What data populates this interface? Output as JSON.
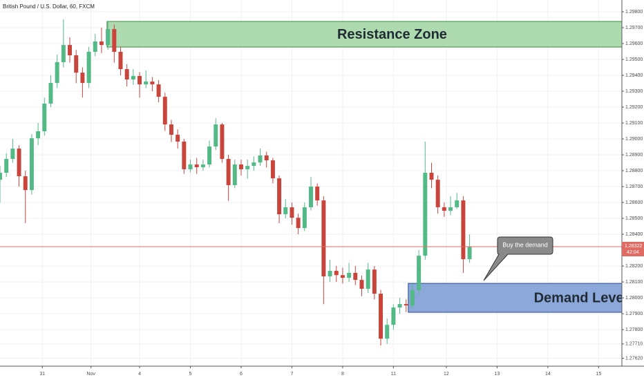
{
  "chart_data": {
    "type": "candlestick",
    "title": "British Pound / U.S. Dollar, 60, FXCM",
    "x": [
      0,
      3,
      6,
      9,
      12,
      15,
      18,
      21,
      24,
      27,
      30,
      33,
      36,
      39,
      42,
      45,
      48,
      51,
      54,
      57,
      60,
      63,
      66,
      69,
      72,
      75,
      78,
      81,
      84,
      87,
      90,
      93,
      96,
      99,
      102,
      105,
      108,
      111,
      114,
      117,
      120,
      123,
      126,
      129,
      132,
      135,
      138,
      141,
      144,
      147,
      150,
      153,
      156,
      159,
      162,
      165,
      168,
      171,
      174,
      177,
      180,
      183,
      186,
      189,
      192,
      195,
      198,
      201,
      204,
      207,
      210,
      213,
      216,
      219,
      222
    ],
    "open": [
      1.28743,
      1.28787,
      1.28874,
      1.28939,
      1.28765,
      1.28678,
      1.29004,
      1.29048,
      1.29222,
      1.29352,
      1.29483,
      1.29591,
      1.29526,
      1.29417,
      1.29352,
      1.29548,
      1.29613,
      1.29591,
      1.29691,
      1.29548,
      1.29439,
      1.29374,
      1.29396,
      1.29343,
      1.29361,
      1.29343,
      1.29265,
      1.29091,
      1.29026,
      1.28983,
      1.28809,
      1.28839,
      1.28822,
      1.28839,
      1.28952,
      1.29091,
      1.28874,
      1.28709,
      1.28839,
      1.28809,
      1.2883,
      1.28852,
      1.28896,
      1.28865,
      1.28752,
      1.28526,
      1.2857,
      1.28504,
      1.28439,
      1.2857,
      1.287,
      1.28613,
      1.28135,
      1.2817,
      1.28143,
      1.28126,
      1.28157,
      1.28113,
      1.28057,
      1.28178,
      1.28026,
      1.27743,
      1.2783,
      1.27939,
      1.27961,
      1.27952,
      1.28048,
      1.28265,
      1.28787,
      1.28743,
      1.2857,
      1.28548,
      1.2857,
      1.28613,
      1.28243
    ],
    "high": [
      1.2883,
      1.2891,
      1.29,
      1.2896,
      1.288,
      1.2903,
      1.291,
      1.2926,
      1.294,
      1.2953,
      1.29752,
      1.2964,
      1.2956,
      1.2945,
      1.2958,
      1.2966,
      1.297,
      1.29743,
      1.2972,
      1.2958,
      1.2947,
      1.2944,
      1.2942,
      1.2943,
      1.2939,
      1.2937,
      1.2929,
      1.2912,
      1.2906,
      1.29,
      1.2887,
      1.2888,
      1.2887,
      1.2899,
      1.2913,
      1.291,
      1.289,
      1.2887,
      1.2887,
      1.2887,
      1.2889,
      1.2894,
      1.2892,
      1.2888,
      1.2877,
      1.2862,
      1.286,
      1.2853,
      1.286,
      1.2876,
      1.2872,
      1.2864,
      1.2824,
      1.282,
      1.2819,
      1.2822,
      1.282,
      1.2814,
      1.2822,
      1.282,
      1.2805,
      1.2787,
      1.2796,
      1.28,
      1.2799,
      1.2809,
      1.283,
      1.28983,
      1.2885,
      1.2877,
      1.286,
      1.2864,
      1.2866,
      1.2864,
      1.284
    ],
    "low": [
      1.286,
      1.2876,
      1.2885,
      1.287,
      1.2847,
      1.2865,
      1.2896,
      1.2902,
      1.292,
      1.2932,
      1.2945,
      1.2948,
      1.2935,
      1.2926,
      1.2932,
      1.2952,
      1.2954,
      1.2956,
      1.2948,
      1.294,
      1.2933,
      1.2934,
      1.2926,
      1.2932,
      1.293,
      1.2923,
      1.2905,
      1.2898,
      1.2894,
      1.2878,
      1.2879,
      1.2878,
      1.288,
      1.2882,
      1.2893,
      1.2885,
      1.2861,
      1.2869,
      1.2877,
      1.2875,
      1.288,
      1.2883,
      1.2882,
      1.2872,
      1.2847,
      1.285,
      1.2846,
      1.284,
      1.2842,
      1.2855,
      1.2858,
      1.2796,
      1.281,
      1.281,
      1.2809,
      1.281,
      1.2808,
      1.2801,
      1.2803,
      1.2799,
      1.277,
      1.2771,
      1.278,
      1.279,
      1.2791,
      1.2793,
      1.2802,
      1.2824,
      1.2869,
      1.2853,
      1.2851,
      1.2852,
      1.2856,
      1.28157,
      1.2822
    ],
    "close": [
      1.28787,
      1.28874,
      1.28939,
      1.28765,
      1.28678,
      1.29004,
      1.29048,
      1.29222,
      1.29352,
      1.29483,
      1.29591,
      1.29526,
      1.29417,
      1.29352,
      1.29548,
      1.29613,
      1.29591,
      1.29691,
      1.29548,
      1.29439,
      1.29374,
      1.29396,
      1.29343,
      1.29361,
      1.29343,
      1.29265,
      1.29091,
      1.29026,
      1.28983,
      1.28809,
      1.28839,
      1.28822,
      1.28839,
      1.28952,
      1.29091,
      1.28874,
      1.28709,
      1.28839,
      1.28809,
      1.2883,
      1.28852,
      1.28896,
      1.28865,
      1.28752,
      1.28526,
      1.2857,
      1.28504,
      1.28439,
      1.2857,
      1.287,
      1.28613,
      1.28135,
      1.2817,
      1.28143,
      1.28126,
      1.28157,
      1.28113,
      1.28057,
      1.28178,
      1.28026,
      1.27743,
      1.2783,
      1.27939,
      1.27961,
      1.27952,
      1.28048,
      1.28265,
      1.28787,
      1.28743,
      1.2857,
      1.28548,
      1.2857,
      1.28613,
      1.28243,
      1.28322
    ],
    "up_color": "#53b987",
    "down_color": "#c8453c",
    "xlim": [
      0,
      294
    ],
    "xticks": [
      {
        "value": 20,
        "label": "31"
      },
      {
        "value": 43,
        "label": "Nov"
      },
      {
        "value": 66,
        "label": "4"
      },
      {
        "value": 90,
        "label": "5"
      },
      {
        "value": 114,
        "label": "6"
      },
      {
        "value": 138,
        "label": "7"
      },
      {
        "value": 162,
        "label": "8"
      },
      {
        "value": 186,
        "label": "11"
      },
      {
        "value": 211,
        "label": "12"
      },
      {
        "value": 235,
        "label": "13"
      },
      {
        "value": 259,
        "label": "14"
      },
      {
        "value": 283,
        "label": "15"
      }
    ],
    "ylim": [
      1.2757,
      1.29874
    ],
    "yticks": [
      {
        "value": 1.2762,
        "label": "1.27620"
      },
      {
        "value": 1.2771,
        "label": "1.27710"
      },
      {
        "value": 1.278,
        "label": "1.27800"
      },
      {
        "value": 1.279,
        "label": "1.27900"
      },
      {
        "value": 1.28,
        "label": "1.28000"
      },
      {
        "value": 1.281,
        "label": "1.28100"
      },
      {
        "value": 1.282,
        "label": "1.28200"
      },
      {
        "value": 1.284,
        "label": "1.28400"
      },
      {
        "value": 1.285,
        "label": "1.28500"
      },
      {
        "value": 1.286,
        "label": "1.28600"
      },
      {
        "value": 1.287,
        "label": "1.28700"
      },
      {
        "value": 1.288,
        "label": "1.28800"
      },
      {
        "value": 1.289,
        "label": "1.28900"
      },
      {
        "value": 1.29,
        "label": "1.29000"
      },
      {
        "value": 1.291,
        "label": "1.29100"
      },
      {
        "value": 1.292,
        "label": "1.29200"
      },
      {
        "value": 1.293,
        "label": "1.29300"
      },
      {
        "value": 1.294,
        "label": "1.29400"
      },
      {
        "value": 1.295,
        "label": "1.29500"
      },
      {
        "value": 1.296,
        "label": "1.29600"
      },
      {
        "value": 1.297,
        "label": "1.29700"
      },
      {
        "value": 1.298,
        "label": "1.29800"
      }
    ],
    "grid": true,
    "last_price": 1.28322,
    "countdown": "42:04",
    "last_price_color": "#e06b63",
    "zones": [
      {
        "label": "Resistance Zone",
        "from_x": 50.6,
        "range": [
          1.29578,
          1.29739
        ],
        "color": "#a5d6a7",
        "border": "#3d8b40"
      },
      {
        "label": "Demand Level",
        "from_x": 193,
        "range": [
          1.27909,
          1.28091
        ],
        "color": "#7f9fd6",
        "border": "#2b4d8c"
      }
    ],
    "annotation": "Buy the demand"
  }
}
